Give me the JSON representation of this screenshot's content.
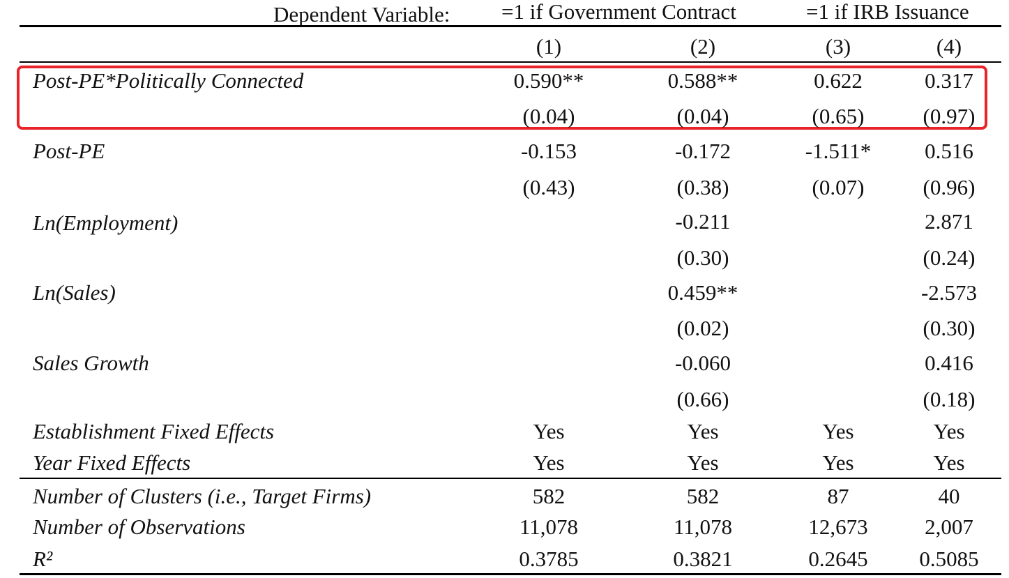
{
  "header": {
    "dependent_variable_label": "Dependent Variable:",
    "group_government": "=1 if Government Contract",
    "group_irb": "=1 if IRB Issuance",
    "columns": [
      "(1)",
      "(2)",
      "(3)",
      "(4)"
    ]
  },
  "rows": [
    {
      "label": "Post-PE*Politically Connected",
      "coef": [
        "0.590**",
        "0.588**",
        "0.622",
        "0.317"
      ],
      "se": [
        "(0.04)",
        "(0.04)",
        "(0.65)",
        "(0.97)"
      ]
    },
    {
      "label": "Post-PE",
      "coef": [
        "-0.153",
        "-0.172",
        "-1.511*",
        "0.516"
      ],
      "se": [
        "(0.43)",
        "(0.38)",
        "(0.07)",
        "(0.96)"
      ]
    },
    {
      "label": "Ln(Employment)",
      "coef": [
        "",
        "-0.211",
        "",
        "2.871"
      ],
      "se": [
        "",
        "(0.30)",
        "",
        "(0.24)"
      ]
    },
    {
      "label": "Ln(Sales)",
      "coef": [
        "",
        "0.459**",
        "",
        "-2.573"
      ],
      "se": [
        "",
        "(0.02)",
        "",
        "(0.30)"
      ]
    },
    {
      "label": "Sales Growth",
      "coef": [
        "",
        "-0.060",
        "",
        "0.416"
      ],
      "se": [
        "",
        "(0.66)",
        "",
        "(0.18)"
      ]
    }
  ],
  "fixed_effects": [
    {
      "label": "Establishment Fixed Effects",
      "values": [
        "Yes",
        "Yes",
        "Yes",
        "Yes"
      ]
    },
    {
      "label": "Year Fixed Effects",
      "values": [
        "Yes",
        "Yes",
        "Yes",
        "Yes"
      ]
    }
  ],
  "stats": [
    {
      "label": "Number of Clusters (i.e., Target Firms)",
      "values": [
        "582",
        "582",
        "87",
        "40"
      ]
    },
    {
      "label": "Number of Observations",
      "values": [
        "11,078",
        "11,078",
        "12,673",
        "2,007"
      ]
    },
    {
      "label": "R²",
      "values": [
        "0.3785",
        "0.3821",
        "0.2645",
        "0.5085"
      ]
    }
  ],
  "highlight_color": "#e8232a"
}
